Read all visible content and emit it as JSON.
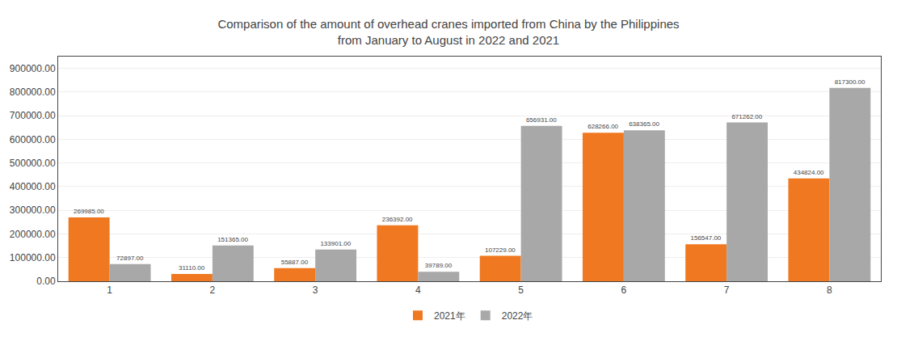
{
  "chart_data": {
    "type": "bar",
    "title": "Comparison of the amount of overhead cranes imported from China by the Philippines",
    "subtitle": "from January to August in 2022 and 2021",
    "categories": [
      "1",
      "2",
      "3",
      "4",
      "5",
      "6",
      "7",
      "8"
    ],
    "series": [
      {
        "name": "2021年",
        "color": "#F07820",
        "values": [
          269985,
          31110,
          55887,
          236392,
          107229,
          628266,
          156547,
          434824
        ],
        "value_labels": [
          "269985.00",
          "31110.00",
          "55887.00",
          "236392.00",
          "107229.00",
          "628266.00",
          "156547.00",
          "434824.00"
        ]
      },
      {
        "name": "2022年",
        "color": "#A8A8A8",
        "values": [
          72897,
          151365,
          133901,
          39789,
          656931,
          638365,
          671262,
          817300
        ],
        "value_labels": [
          "72897.00",
          "151365.00",
          "133901.00",
          "39789.00",
          "656931.00",
          "638365.00",
          "671262.00",
          "817300.00"
        ]
      }
    ],
    "ylim": [
      0,
      950000
    ],
    "yticks": [
      {
        "value": 0,
        "label": "0.00"
      },
      {
        "value": 100000,
        "label": "100000.00"
      },
      {
        "value": 200000,
        "label": "200000.00"
      },
      {
        "value": 300000,
        "label": "300000.00"
      },
      {
        "value": 400000,
        "label": "400000.00"
      },
      {
        "value": 500000,
        "label": "500000.00"
      },
      {
        "value": 600000,
        "label": "600000.00"
      },
      {
        "value": 700000,
        "label": "700000.00"
      },
      {
        "value": 800000,
        "label": "800000.00"
      },
      {
        "value": 900000,
        "label": "900000.00"
      }
    ],
    "grid": true,
    "legend": "bottom",
    "data_labels": true
  }
}
